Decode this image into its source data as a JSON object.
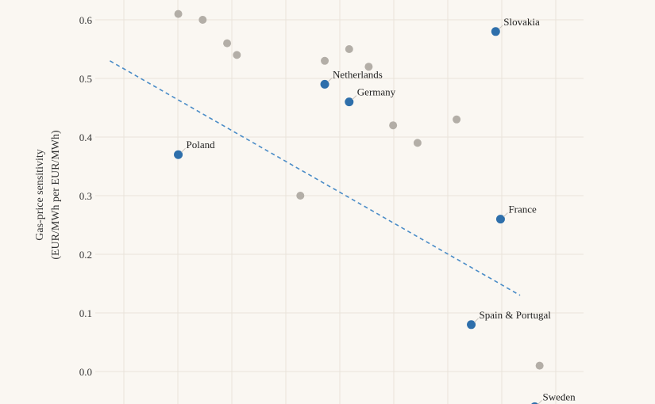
{
  "chart_data": {
    "type": "scatter",
    "title": "",
    "ylabel_line1": "Gas-price sensitivity",
    "ylabel_line2": "(EUR/MWh per EUR/MWh)",
    "ylim": [
      -0.06,
      0.63
    ],
    "yticks": [
      "0.6",
      "0.5",
      "0.4",
      "0.3",
      "0.2",
      "0.1",
      "0.0"
    ],
    "xlim": [
      0,
      1
    ],
    "colors": {
      "highlight": "#2e6fab",
      "other": "#b3aea7",
      "trend": "#4a8cc7",
      "background": "#faf7f2"
    },
    "highlighted_points": [
      {
        "label": "Slovakia",
        "x": 0.82,
        "y": 0.58
      },
      {
        "label": "Netherlands",
        "x": 0.47,
        "y": 0.49
      },
      {
        "label": "Germany",
        "x": 0.52,
        "y": 0.46
      },
      {
        "label": "Poland",
        "x": 0.17,
        "y": 0.37
      },
      {
        "label": "France",
        "x": 0.83,
        "y": 0.26
      },
      {
        "label": "Spain & Portugal",
        "x": 0.77,
        "y": 0.08
      },
      {
        "label": "Sweden",
        "x": 0.9,
        "y": -0.06
      }
    ],
    "other_points": [
      {
        "x": 0.17,
        "y": 0.61
      },
      {
        "x": 0.22,
        "y": 0.6
      },
      {
        "x": 0.27,
        "y": 0.56
      },
      {
        "x": 0.29,
        "y": 0.54
      },
      {
        "x": 0.52,
        "y": 0.55
      },
      {
        "x": 0.47,
        "y": 0.53
      },
      {
        "x": 0.56,
        "y": 0.52
      },
      {
        "x": 0.61,
        "y": 0.42
      },
      {
        "x": 0.66,
        "y": 0.39
      },
      {
        "x": 0.74,
        "y": 0.43
      },
      {
        "x": 0.42,
        "y": 0.3
      },
      {
        "x": 0.91,
        "y": 0.01
      }
    ],
    "trendline": {
      "x": [
        0.03,
        0.87
      ],
      "y": [
        0.53,
        0.13
      ]
    }
  }
}
